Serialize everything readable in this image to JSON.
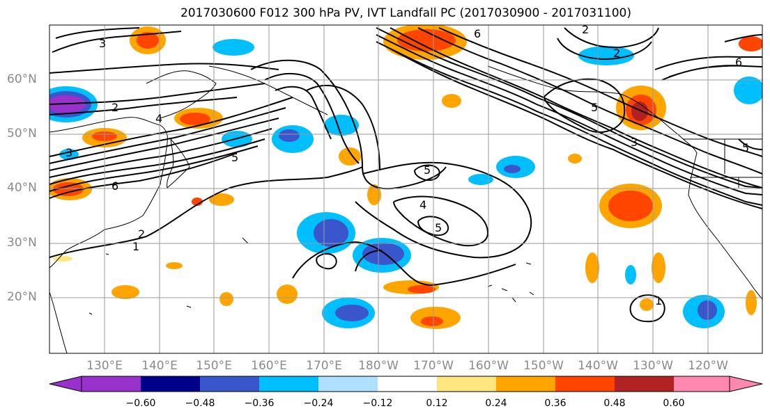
{
  "map": {
    "title": "2017030600 F012 300 hPa PV, IVT Landfall PC (2017030900 - 2017031100)",
    "lat_labels": [
      "60°N",
      "50°N",
      "40°N",
      "30°N",
      "20°N"
    ],
    "lon_labels": [
      "130°E",
      "140°E",
      "150°E",
      "160°E",
      "170°E",
      "180°W",
      "170°W",
      "160°W",
      "150°W",
      "140°W",
      "130°W",
      "120°W"
    ],
    "contour_labels": [
      "2",
      "3",
      "4",
      "5",
      "6",
      "1",
      "2",
      "3",
      "5",
      "4",
      "5",
      "6",
      "2",
      "3",
      "5",
      "6",
      "5",
      "1",
      "2"
    ]
  },
  "colorbar": {
    "tick_labels": [
      "−0.60",
      "−0.48",
      "−0.36",
      "−0.24",
      "−0.12",
      "0.12",
      "0.24",
      "0.36",
      "0.48",
      "0.60"
    ],
    "colors": [
      "#9932cc",
      "#00008b",
      "#3a56cc",
      "#00bfff",
      "#b0e0ff",
      "#ffffff",
      "#ffe680",
      "#ffa500",
      "#ff4500",
      "#b22222",
      "#ff88b0",
      "#ff88b0"
    ]
  }
}
